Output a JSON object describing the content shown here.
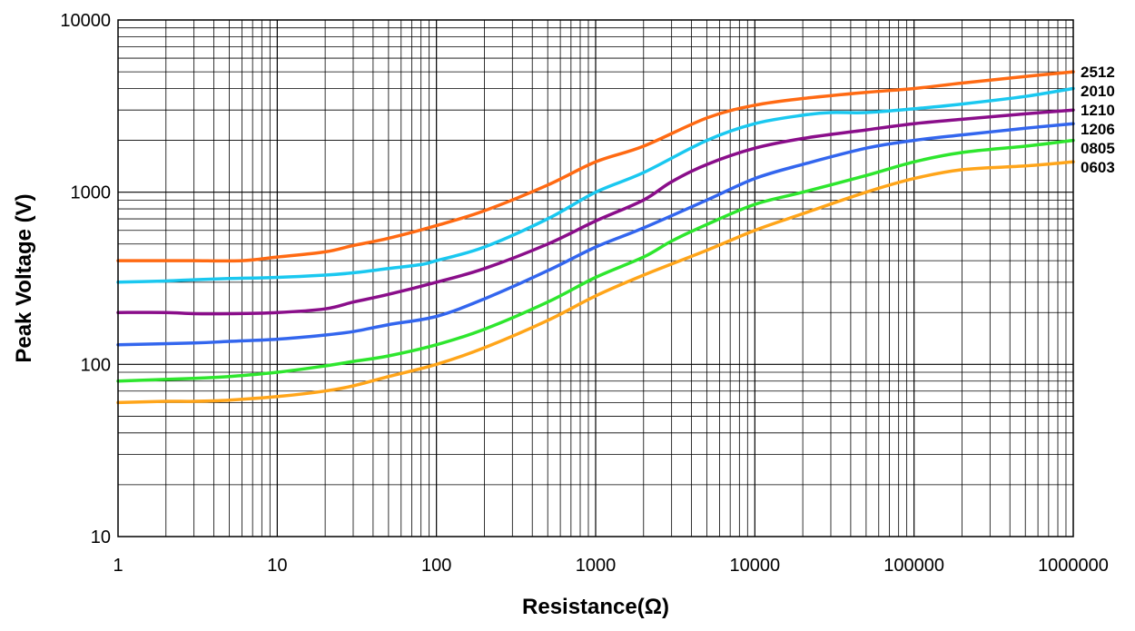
{
  "chart_data": {
    "type": "line",
    "title": "",
    "xlabel": "Resistance(Ω)",
    "ylabel": "Peak Voltage (V)",
    "x_scale": "log",
    "y_scale": "log",
    "xlim": [
      1,
      1000000
    ],
    "ylim": [
      10,
      10000
    ],
    "grid": true,
    "legend": "right-edge labels",
    "x_ticks": [
      1,
      10,
      100,
      1000,
      10000,
      100000,
      1000000
    ],
    "x_tick_labels": [
      "1",
      "10",
      "100",
      "1000",
      "10000",
      "100000",
      "1000000"
    ],
    "y_ticks": [
      10,
      100,
      1000,
      10000
    ],
    "y_tick_labels": [
      "10",
      "100",
      "1000",
      "10000"
    ],
    "series": [
      {
        "name": "2512",
        "color": "#ff6a13",
        "points": [
          [
            1,
            400
          ],
          [
            2,
            400
          ],
          [
            3,
            400
          ],
          [
            6,
            400
          ],
          [
            10,
            420
          ],
          [
            20,
            450
          ],
          [
            30,
            490
          ],
          [
            50,
            540
          ],
          [
            100,
            640
          ],
          [
            200,
            780
          ],
          [
            500,
            1100
          ],
          [
            1000,
            1500
          ],
          [
            2000,
            1850
          ],
          [
            5000,
            2700
          ],
          [
            10000,
            3200
          ],
          [
            20000,
            3500
          ],
          [
            50000,
            3800
          ],
          [
            100000,
            4000
          ],
          [
            200000,
            4300
          ],
          [
            500000,
            4700
          ],
          [
            1000000,
            5000
          ]
        ]
      },
      {
        "name": "2010",
        "color": "#1ac8f0",
        "points": [
          [
            1,
            300
          ],
          [
            2,
            305
          ],
          [
            3,
            310
          ],
          [
            5,
            315
          ],
          [
            10,
            320
          ],
          [
            20,
            330
          ],
          [
            30,
            340
          ],
          [
            50,
            360
          ],
          [
            80,
            380
          ],
          [
            100,
            400
          ],
          [
            200,
            480
          ],
          [
            500,
            700
          ],
          [
            1000,
            1000
          ],
          [
            2000,
            1300
          ],
          [
            5000,
            2000
          ],
          [
            10000,
            2500
          ],
          [
            20000,
            2800
          ],
          [
            30000,
            2900
          ],
          [
            50000,
            2900
          ],
          [
            100000,
            3050
          ],
          [
            200000,
            3250
          ],
          [
            500000,
            3600
          ],
          [
            1000000,
            4000
          ]
        ]
      },
      {
        "name": "1210",
        "color": "#8a0e8a",
        "points": [
          [
            1,
            200
          ],
          [
            2,
            200
          ],
          [
            3,
            197
          ],
          [
            5,
            197
          ],
          [
            10,
            200
          ],
          [
            20,
            210
          ],
          [
            30,
            230
          ],
          [
            50,
            255
          ],
          [
            100,
            300
          ],
          [
            200,
            360
          ],
          [
            500,
            500
          ],
          [
            1000,
            680
          ],
          [
            2000,
            900
          ],
          [
            3000,
            1150
          ],
          [
            5000,
            1450
          ],
          [
            10000,
            1800
          ],
          [
            20000,
            2050
          ],
          [
            50000,
            2300
          ],
          [
            100000,
            2500
          ],
          [
            200000,
            2650
          ],
          [
            500000,
            2850
          ],
          [
            1000000,
            3000
          ]
        ]
      },
      {
        "name": "1206",
        "color": "#3366ee",
        "points": [
          [
            1,
            130
          ],
          [
            3,
            133
          ],
          [
            5,
            136
          ],
          [
            10,
            140
          ],
          [
            20,
            148
          ],
          [
            30,
            155
          ],
          [
            50,
            170
          ],
          [
            100,
            190
          ],
          [
            200,
            240
          ],
          [
            500,
            350
          ],
          [
            1000,
            480
          ],
          [
            2000,
            620
          ],
          [
            5000,
            900
          ],
          [
            10000,
            1200
          ],
          [
            20000,
            1450
          ],
          [
            50000,
            1800
          ],
          [
            100000,
            2000
          ],
          [
            200000,
            2150
          ],
          [
            500000,
            2350
          ],
          [
            1000000,
            2500
          ]
        ]
      },
      {
        "name": "0805",
        "color": "#2ee62e",
        "points": [
          [
            1,
            80
          ],
          [
            3,
            83
          ],
          [
            5,
            85
          ],
          [
            10,
            90
          ],
          [
            20,
            98
          ],
          [
            30,
            104
          ],
          [
            50,
            112
          ],
          [
            100,
            130
          ],
          [
            200,
            160
          ],
          [
            500,
            230
          ],
          [
            1000,
            320
          ],
          [
            2000,
            420
          ],
          [
            3000,
            520
          ],
          [
            5000,
            650
          ],
          [
            10000,
            850
          ],
          [
            20000,
            1000
          ],
          [
            50000,
            1250
          ],
          [
            100000,
            1500
          ],
          [
            200000,
            1700
          ],
          [
            500000,
            1850
          ],
          [
            1000000,
            2000
          ]
        ]
      },
      {
        "name": "0603",
        "color": "#ffa51a",
        "points": [
          [
            1,
            60
          ],
          [
            2,
            61
          ],
          [
            3,
            61
          ],
          [
            5,
            62
          ],
          [
            10,
            65
          ],
          [
            20,
            70
          ],
          [
            30,
            75
          ],
          [
            50,
            85
          ],
          [
            100,
            100
          ],
          [
            200,
            125
          ],
          [
            500,
            180
          ],
          [
            1000,
            250
          ],
          [
            2000,
            330
          ],
          [
            5000,
            460
          ],
          [
            10000,
            600
          ],
          [
            20000,
            750
          ],
          [
            50000,
            1000
          ],
          [
            100000,
            1200
          ],
          [
            200000,
            1350
          ],
          [
            500000,
            1420
          ],
          [
            1000000,
            1500
          ]
        ]
      }
    ]
  }
}
